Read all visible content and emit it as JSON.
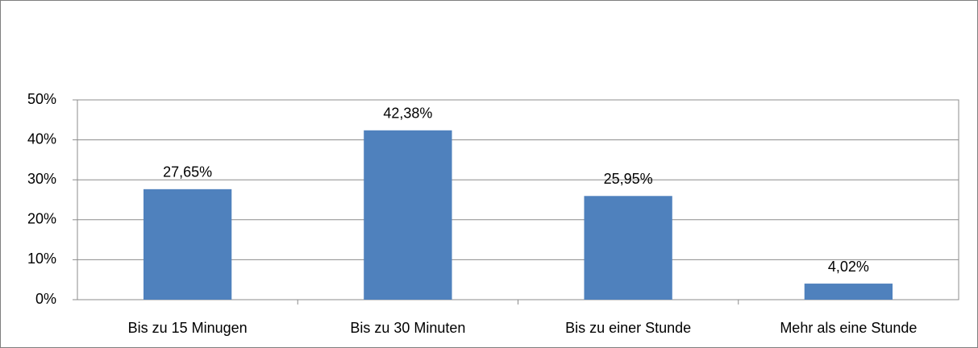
{
  "chart_data": {
    "type": "bar",
    "categories": [
      "Bis zu 15 Minugen",
      "Bis zu 30 Minuten",
      "Bis zu einer Stunde",
      "Mehr als eine Stunde"
    ],
    "values": [
      27.65,
      42.38,
      25.95,
      4.02
    ],
    "value_labels": [
      "27,65%",
      "42,38%",
      "25,95%",
      "4,02%"
    ],
    "color": "#4f81bd",
    "ylim": [
      0,
      50
    ],
    "yticks": [
      {
        "value": 0,
        "label": "0%"
      },
      {
        "value": 10,
        "label": "10%"
      },
      {
        "value": 20,
        "label": "20%"
      },
      {
        "value": 30,
        "label": "30%"
      },
      {
        "value": 40,
        "label": "40%"
      },
      {
        "value": 50,
        "label": "50%"
      }
    ],
    "grid": true
  }
}
